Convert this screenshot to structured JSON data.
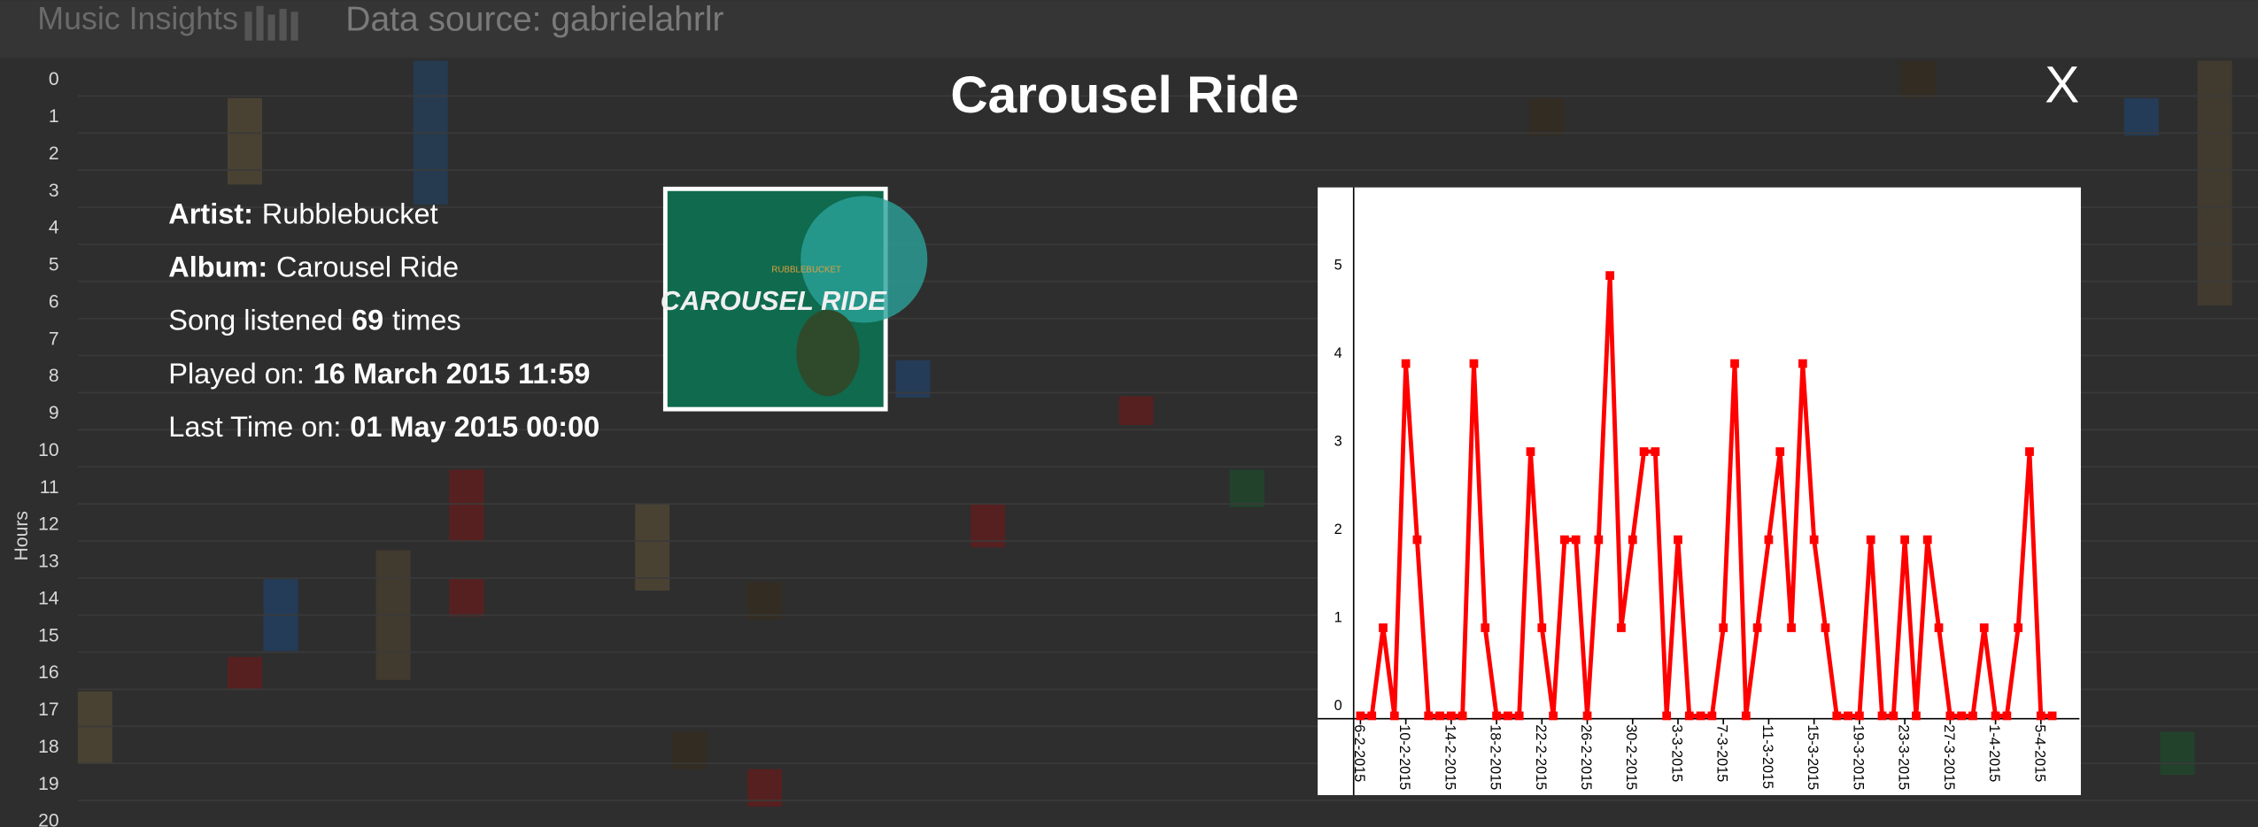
{
  "header": {
    "logo": "Music Insights",
    "data_source": "Data source: gabrielahrlr"
  },
  "hours_axis": {
    "label": "Hours",
    "ticks": [
      0,
      1,
      2,
      3,
      4,
      5,
      6,
      7,
      8,
      9,
      10,
      11,
      12,
      13,
      14,
      15,
      16,
      17,
      18,
      19,
      20
    ]
  },
  "modal": {
    "title": "Carousel Ride",
    "close": "X",
    "details": {
      "artist_label": "Artist:",
      "artist": "Rubblebucket",
      "album_label": "Album:",
      "album": "Carousel Ride",
      "listened_prefix": "Song listened",
      "listened_count": "69",
      "listened_suffix": "times",
      "played_label": "Played on:",
      "played": "16 March 2015 11:59",
      "last_label": "Last Time on:",
      "last": "01 May 2015 00:00"
    },
    "album_art": {
      "band": "RUBBLEBUCKET",
      "title": "CAROUSEL RIDE"
    }
  },
  "chart_data": {
    "type": "line",
    "color": "#ff0000",
    "x": [
      0,
      1,
      2,
      3,
      4,
      5,
      6,
      7,
      8,
      9,
      10,
      11,
      12,
      13,
      14,
      15,
      16,
      17,
      18,
      19,
      20,
      21,
      22,
      23,
      24,
      25,
      26,
      27,
      28,
      29,
      30,
      31,
      32,
      33,
      34,
      35,
      36,
      37,
      38,
      39,
      40,
      41,
      42,
      43,
      44,
      45,
      46,
      47,
      48,
      49,
      50,
      51,
      52,
      53,
      54,
      55,
      56,
      57,
      58,
      59,
      60,
      61
    ],
    "values": [
      0,
      0,
      1,
      0,
      4,
      2,
      0,
      0,
      0,
      0,
      4,
      1,
      0,
      0,
      0,
      3,
      1,
      0,
      2,
      2,
      0,
      2,
      5,
      1,
      2,
      3,
      3,
      0,
      2,
      0,
      0,
      0,
      1,
      4,
      0,
      1,
      2,
      3,
      1,
      4,
      2,
      1,
      0,
      0,
      0,
      2,
      0,
      0,
      2,
      0,
      2,
      1,
      0,
      0,
      0,
      1,
      0,
      0,
      1,
      3,
      0,
      0
    ],
    "xlim": [
      -0.6,
      63.4
    ],
    "xticks": [
      {
        "value": 0,
        "label": "6-2-2015"
      },
      {
        "value": 4,
        "label": "10-2-2015"
      },
      {
        "value": 8,
        "label": "14-2-2015"
      },
      {
        "value": 12,
        "label": "18-2-2015"
      },
      {
        "value": 16,
        "label": "22-2-2015"
      },
      {
        "value": 20,
        "label": "26-2-2015"
      },
      {
        "value": 24,
        "label": "30-2-2015"
      },
      {
        "value": 28,
        "label": "3-3-2015"
      },
      {
        "value": 32,
        "label": "7-3-2015"
      },
      {
        "value": 36,
        "label": "11-3-2015"
      },
      {
        "value": 40,
        "label": "15-3-2015"
      },
      {
        "value": 44,
        "label": "19-3-2015"
      },
      {
        "value": 48,
        "label": "23-3-2015"
      },
      {
        "value": 52,
        "label": "27-3-2015"
      },
      {
        "value": 56,
        "label": "1-4-2015"
      },
      {
        "value": 60,
        "label": "5-4-2015"
      }
    ],
    "ylim": [
      -0.9,
      6
    ],
    "yticks": [
      0,
      1,
      2,
      3,
      4,
      5
    ]
  }
}
